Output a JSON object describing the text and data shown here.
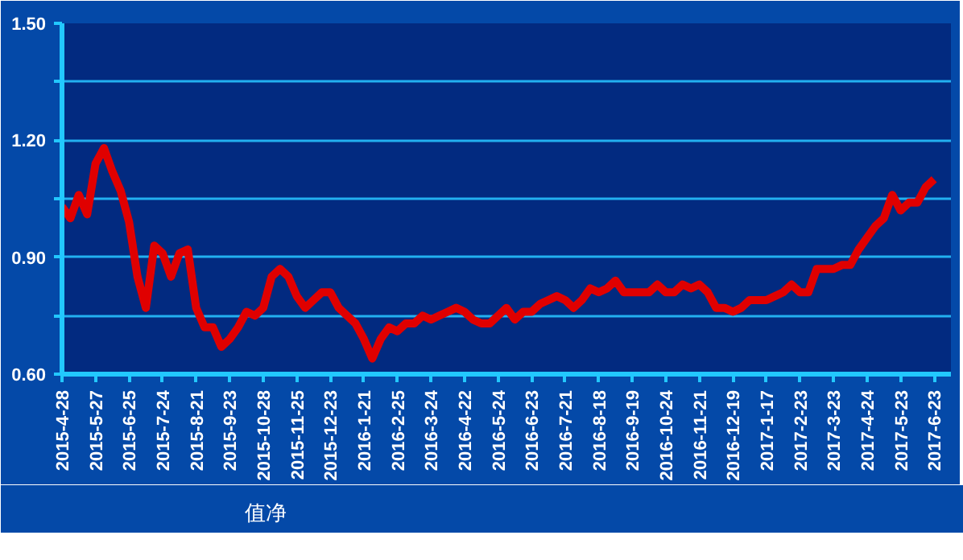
{
  "chart_data": {
    "type": "line",
    "categories": [
      "2015-4-28",
      null,
      null,
      null,
      "2015-5-27",
      null,
      null,
      null,
      "2015-6-25",
      null,
      null,
      null,
      "2015-7-24",
      null,
      null,
      null,
      "2015-8-21",
      null,
      null,
      null,
      "2015-9-23",
      null,
      null,
      null,
      "2015-10-28",
      null,
      null,
      null,
      "2015-11-25",
      null,
      null,
      null,
      "2015-12-23",
      null,
      null,
      null,
      "2016-1-21",
      null,
      null,
      null,
      "2016-2-25",
      null,
      null,
      null,
      "2016-3-24",
      null,
      null,
      null,
      "2016-4-22",
      null,
      null,
      null,
      "2016-5-24",
      null,
      null,
      null,
      "2016-6-23",
      null,
      null,
      null,
      "2016-7-21",
      null,
      null,
      null,
      "2016-8-18",
      null,
      null,
      null,
      "2016-9-19",
      null,
      null,
      null,
      "2016-10-24",
      null,
      null,
      null,
      "2016-11-21",
      null,
      null,
      null,
      "2016-12-19",
      null,
      null,
      null,
      "2017-1-17",
      null,
      null,
      null,
      "2017-2-23",
      null,
      null,
      null,
      "2017-3-23",
      null,
      null,
      null,
      "2017-4-24",
      null,
      null,
      null,
      "2017-5-23",
      null,
      null,
      null,
      "2017-6-23"
    ],
    "series": [
      {
        "name": "值净",
        "color": "#e00000",
        "values": [
          1.03,
          1.0,
          1.06,
          1.01,
          1.14,
          1.18,
          1.12,
          1.07,
          0.99,
          0.85,
          0.77,
          0.93,
          0.91,
          0.85,
          0.91,
          0.92,
          0.77,
          0.72,
          0.72,
          0.67,
          0.69,
          0.72,
          0.76,
          0.75,
          0.77,
          0.85,
          0.87,
          0.85,
          0.8,
          0.77,
          0.79,
          0.81,
          0.81,
          0.77,
          0.75,
          0.73,
          0.69,
          0.64,
          0.69,
          0.72,
          0.71,
          0.73,
          0.73,
          0.75,
          0.74,
          0.75,
          0.76,
          0.77,
          0.76,
          0.74,
          0.73,
          0.73,
          0.75,
          0.77,
          0.74,
          0.76,
          0.76,
          0.78,
          0.79,
          0.8,
          0.79,
          0.77,
          0.79,
          0.82,
          0.81,
          0.82,
          0.84,
          0.81,
          0.81,
          0.81,
          0.81,
          0.83,
          0.81,
          0.81,
          0.83,
          0.82,
          0.83,
          0.81,
          0.77,
          0.77,
          0.76,
          0.77,
          0.79,
          0.79,
          0.79,
          0.8,
          0.81,
          0.83,
          0.81,
          0.81,
          0.87,
          0.87,
          0.87,
          0.88,
          0.88,
          0.92,
          0.95,
          0.98,
          1.0,
          1.06,
          1.02,
          1.04,
          1.04,
          1.08,
          1.1
        ]
      }
    ],
    "ylim": [
      0.6,
      1.5
    ],
    "yticks": [
      {
        "value": 0.6,
        "label": "0.60"
      },
      {
        "value": 0.75,
        "label": null
      },
      {
        "value": 0.9,
        "label": "0.90"
      },
      {
        "value": 1.05,
        "label": null
      },
      {
        "value": 1.2,
        "label": "1.20"
      },
      {
        "value": 1.35,
        "label": null
      },
      {
        "value": 1.5,
        "label": "1.50"
      }
    ],
    "grid": "y",
    "legend": "bottom left",
    "line_style": "solid"
  }
}
